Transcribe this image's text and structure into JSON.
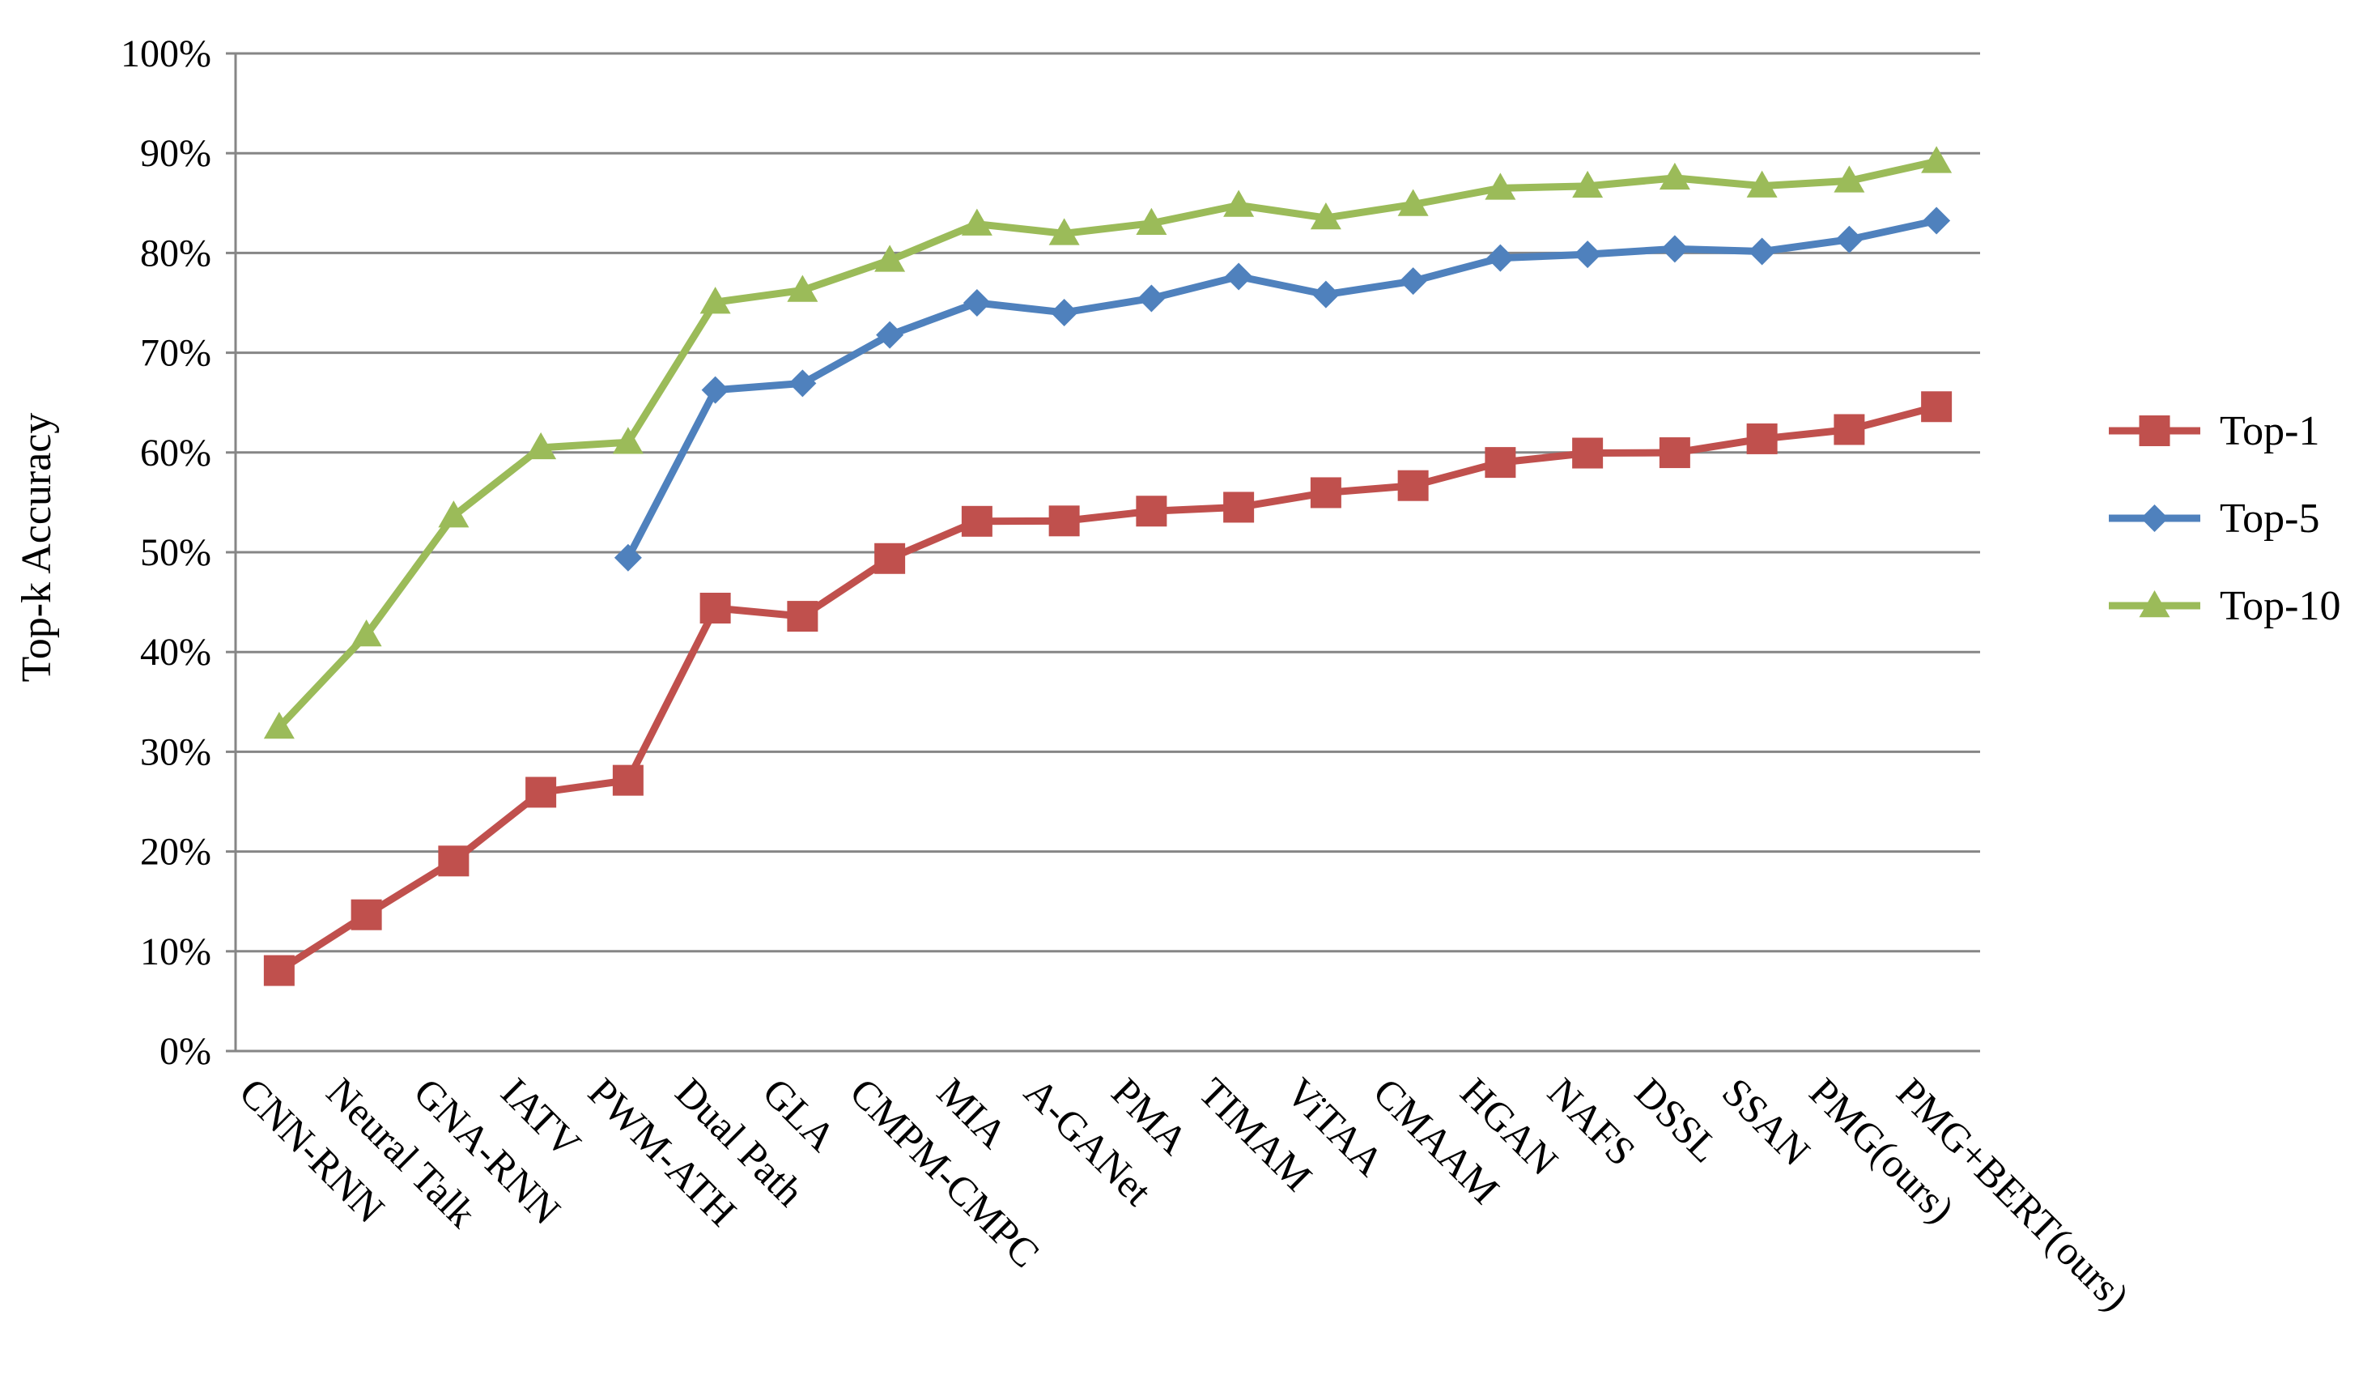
{
  "chart_data": {
    "type": "line",
    "title": "",
    "xlabel": "",
    "ylabel": "Top-k Accuracy",
    "ylim": [
      0,
      100
    ],
    "yticks": [
      "0%",
      "10%",
      "20%",
      "30%",
      "40%",
      "50%",
      "60%",
      "70%",
      "80%",
      "90%",
      "100%"
    ],
    "grid": "horizontal",
    "legend_position": "right",
    "categories": [
      "CNN-RNN",
      "Neural Talk",
      "GNA-RNN",
      "IATV",
      "PWM-ATH",
      "Dual Path",
      "GLA",
      "CMPM-CMPC",
      "MIA",
      "A-GANet",
      "PMA",
      "TIMAM",
      "ViTAA",
      "CMAAM",
      "HGAN",
      "NAFS",
      "DSSL",
      "SSAN",
      "PMG(ours)",
      "PMG+BERT(ours)"
    ],
    "series": [
      {
        "name": "Top-1",
        "color": "#C0504D",
        "marker": "square",
        "values": [
          8.07,
          13.66,
          19.05,
          25.94,
          27.14,
          44.4,
          43.58,
          49.37,
          53.1,
          53.14,
          54.12,
          54.51,
          55.97,
          56.68,
          59.0,
          59.94,
          59.98,
          61.37,
          62.3,
          64.59
        ]
      },
      {
        "name": "Top-5",
        "color": "#4F81BD",
        "marker": "diamond",
        "values": [
          null,
          null,
          null,
          null,
          49.45,
          66.26,
          66.93,
          71.78,
          75.0,
          74.03,
          75.45,
          77.64,
          75.84,
          77.18,
          79.49,
          79.86,
          80.41,
          80.15,
          81.35,
          83.24
        ]
      },
      {
        "name": "Top-10",
        "color": "#9BBB59",
        "marker": "triangle",
        "values": [
          32.47,
          41.72,
          53.64,
          60.48,
          61.02,
          75.07,
          76.26,
          79.27,
          82.9,
          81.95,
          82.97,
          84.78,
          83.52,
          84.86,
          86.5,
          86.7,
          87.51,
          86.72,
          87.23,
          89.17
        ]
      }
    ]
  }
}
